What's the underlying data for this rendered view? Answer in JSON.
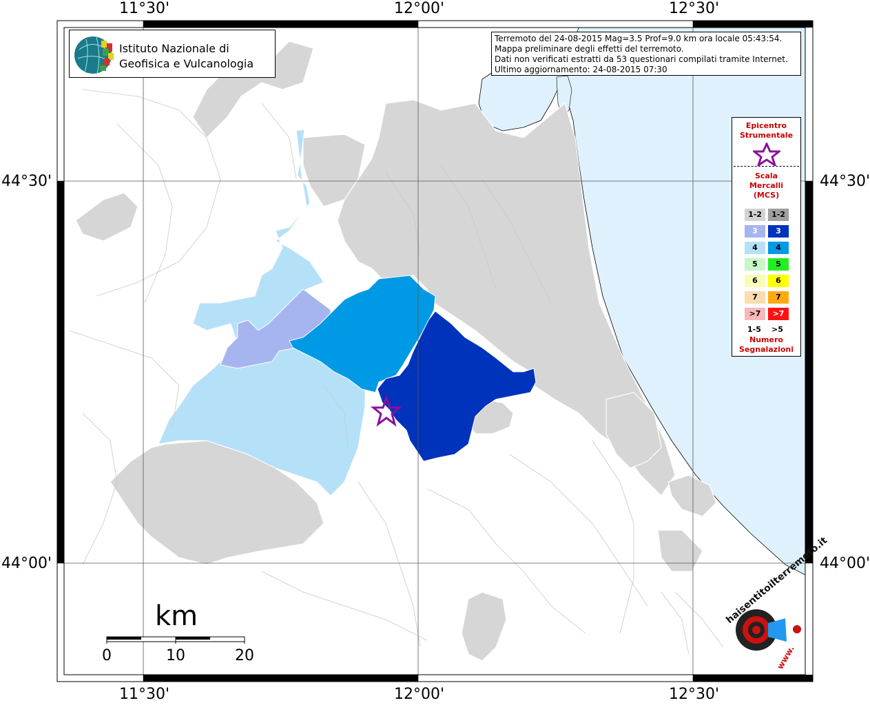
{
  "coords": {
    "top": [
      "11°30'",
      "12°00'",
      "12°30'"
    ],
    "bottom": [
      "11°30'",
      "12°00'",
      "12°30'"
    ],
    "left": [
      "44°30'",
      "44°00'"
    ],
    "right": [
      "44°30'",
      "44°00'"
    ]
  },
  "logo": {
    "line1": "Istituto Nazionale di",
    "line2": "Geofisica e Vulcanologia"
  },
  "info": {
    "line1": "Terremoto del 24-08-2015 Mag=3.5 Prof=9.0 km ora locale 05:43:54.",
    "line2": "Mappa preliminare degli effetti del terremoto.",
    "line3": "Dati non verificati estratti da 53 questionari compilati tramite Internet.",
    "line4": "Ultimo aggiornamento: 24-08-2015 07:30"
  },
  "legend": {
    "epicentre_title": [
      "Epicentro",
      "Strumentale"
    ],
    "scale_title": [
      "Scala",
      "Mercalli",
      "(MCS)"
    ],
    "rows": [
      {
        "left": "1-2",
        "right": "1-2",
        "left_color": "#d3d3d3",
        "right_color": "#a0a0a0",
        "left_text": "#000000",
        "right_text": "#000000"
      },
      {
        "left": "3",
        "right": "3",
        "left_color": "#a6b4f0",
        "right_color": "#0033bb",
        "left_text": "#ffffff",
        "right_text": "#ffffff"
      },
      {
        "left": "4",
        "right": "4",
        "left_color": "#b5e1f8",
        "right_color": "#0099e6",
        "left_text": "#000000",
        "right_text": "#000000"
      },
      {
        "left": "5",
        "right": "5",
        "left_color": "#c8f7c8",
        "right_color": "#22ee22",
        "left_text": "#000000",
        "right_text": "#000000"
      },
      {
        "left": "6",
        "right": "6",
        "left_color": "#fbfbb8",
        "right_color": "#ffff00",
        "left_text": "#000000",
        "right_text": "#000000"
      },
      {
        "left": "7",
        "right": "7",
        "left_color": "#fbdcb0",
        "right_color": "#ffaa11",
        "left_text": "#000000",
        "right_text": "#000000"
      },
      {
        "left": ">7",
        "right": ">7",
        "left_color": "#f8b8b8",
        "right_color": "#ff1111",
        "left_text": "#000000",
        "right_text": "#ffffff"
      }
    ],
    "count_left": "1-5",
    "count_right": ">5",
    "count_title": [
      "Numero",
      "Segnalazioni"
    ]
  },
  "scale_bar": {
    "unit": "km",
    "ticks": [
      "0",
      "10",
      "20"
    ]
  },
  "watermark": {
    "text": "haisentitoilterremoto.it",
    "url_text": "www."
  },
  "colors": {
    "sea": "#dff1fc",
    "land": "#ffffff",
    "grey_region": "#d6d6d6",
    "mcs4_light": "#b5e1f8",
    "mcs3_light": "#a6b4f0",
    "mcs4_dark": "#0099e6",
    "mcs3_dark": "#0033bb",
    "epicentre": "#8b0f9e"
  }
}
